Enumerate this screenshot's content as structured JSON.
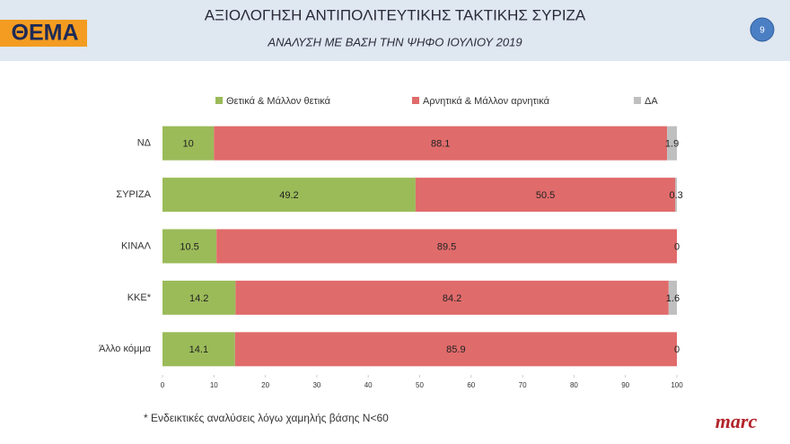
{
  "header": {
    "logo": "ΘΕΜΑ",
    "page_number": "9"
  },
  "chart_data": {
    "type": "bar",
    "orientation": "horizontal",
    "stacked": true,
    "title": "ΑΞΙΟΛΟΓΗΣΗ ΑΝΤΙΠΟΛΙΤΕΥΤΙΚΗΣ ΤΑΚΤΙΚΗΣ ΣΥΡΙΖΑ",
    "subtitle": "ΑΝΑΛΥΣΗ ΜΕ ΒΑΣΗ ΤΗΝ ΨΗΦΟ ΙΟΥΛΙΟΥ 2019",
    "categories": [
      "ΝΔ",
      "ΣΥΡΙΖΑ",
      "ΚΙΝΑΛ",
      "ΚΚΕ*",
      "Άλλο κόμμα"
    ],
    "series": [
      {
        "name": "Θετικά & Μάλλον θετικά",
        "color": "#9bbb59",
        "values": [
          10,
          49.2,
          10.5,
          14.2,
          14.1
        ]
      },
      {
        "name": "Αρνητικά & Μάλλον αρνητικά",
        "color": "#e06b6b",
        "values": [
          88.1,
          50.5,
          89.5,
          84.2,
          85.9
        ]
      },
      {
        "name": "ΔΑ",
        "color": "#bfbfbf",
        "values": [
          1.9,
          0.3,
          0,
          1.6,
          0
        ]
      }
    ],
    "xlim": [
      0,
      100
    ],
    "xticks": [
      0,
      10,
      20,
      30,
      40,
      50,
      60,
      70,
      80,
      90,
      100
    ],
    "grid": false,
    "legend": "top"
  },
  "footnote": "* Ενδεικτικές αναλύσεις λόγω χαμηλής βάσης Ν<60",
  "brand": "marc"
}
